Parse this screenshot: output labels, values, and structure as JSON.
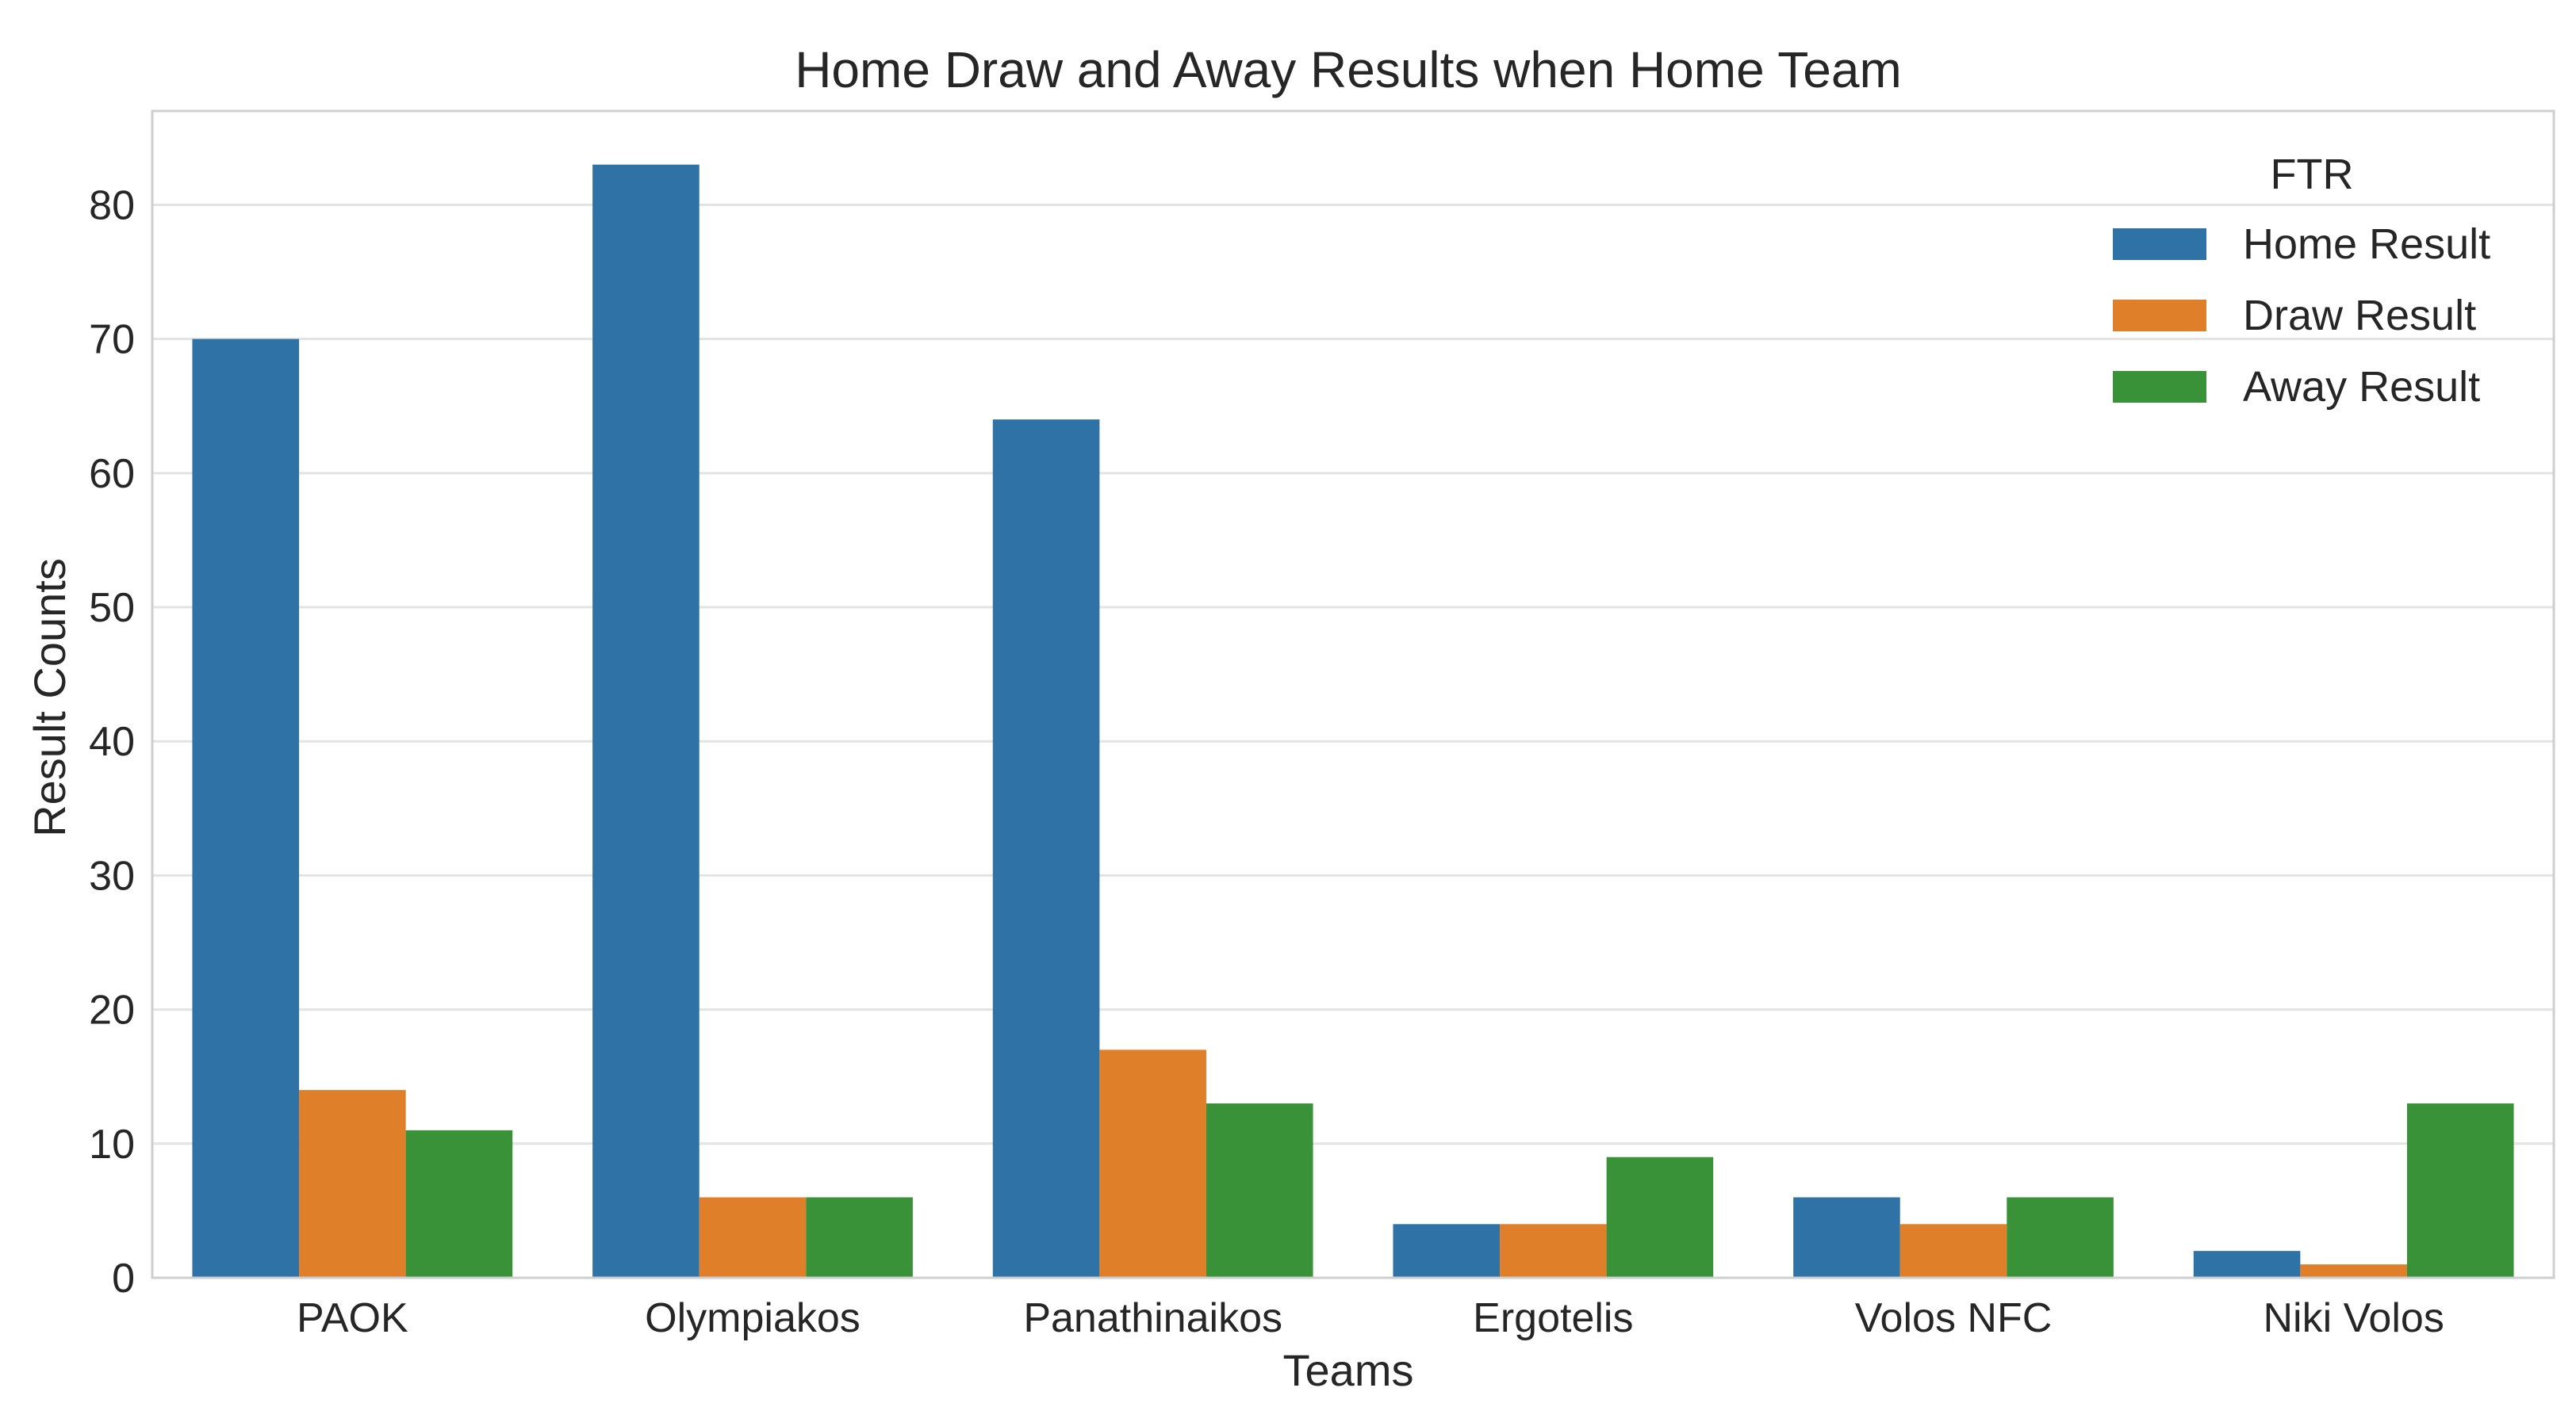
{
  "chart_data": {
    "type": "bar",
    "title": "Home Draw and Away Results when Home Team",
    "xlabel": "Teams",
    "ylabel": "Result Counts",
    "categories": [
      "PAOK",
      "Olympiakos",
      "Panathinaikos",
      "Ergotelis",
      "Volos NFC",
      "Niki Volos"
    ],
    "series": [
      {
        "name": "Home Result",
        "color": "#2f72a6",
        "values": [
          70,
          83,
          64,
          4,
          6,
          2
        ]
      },
      {
        "name": "Draw Result",
        "color": "#e07f2a",
        "values": [
          14,
          6,
          17,
          4,
          4,
          1
        ]
      },
      {
        "name": "Away Result",
        "color": "#3a9238",
        "values": [
          11,
          6,
          13,
          9,
          6,
          13
        ]
      }
    ],
    "ylim": [
      0,
      87
    ],
    "yticks": [
      0,
      10,
      20,
      30,
      40,
      50,
      60,
      70,
      80
    ],
    "grid": true,
    "legend": {
      "title": "FTR",
      "position": "top-right"
    }
  }
}
